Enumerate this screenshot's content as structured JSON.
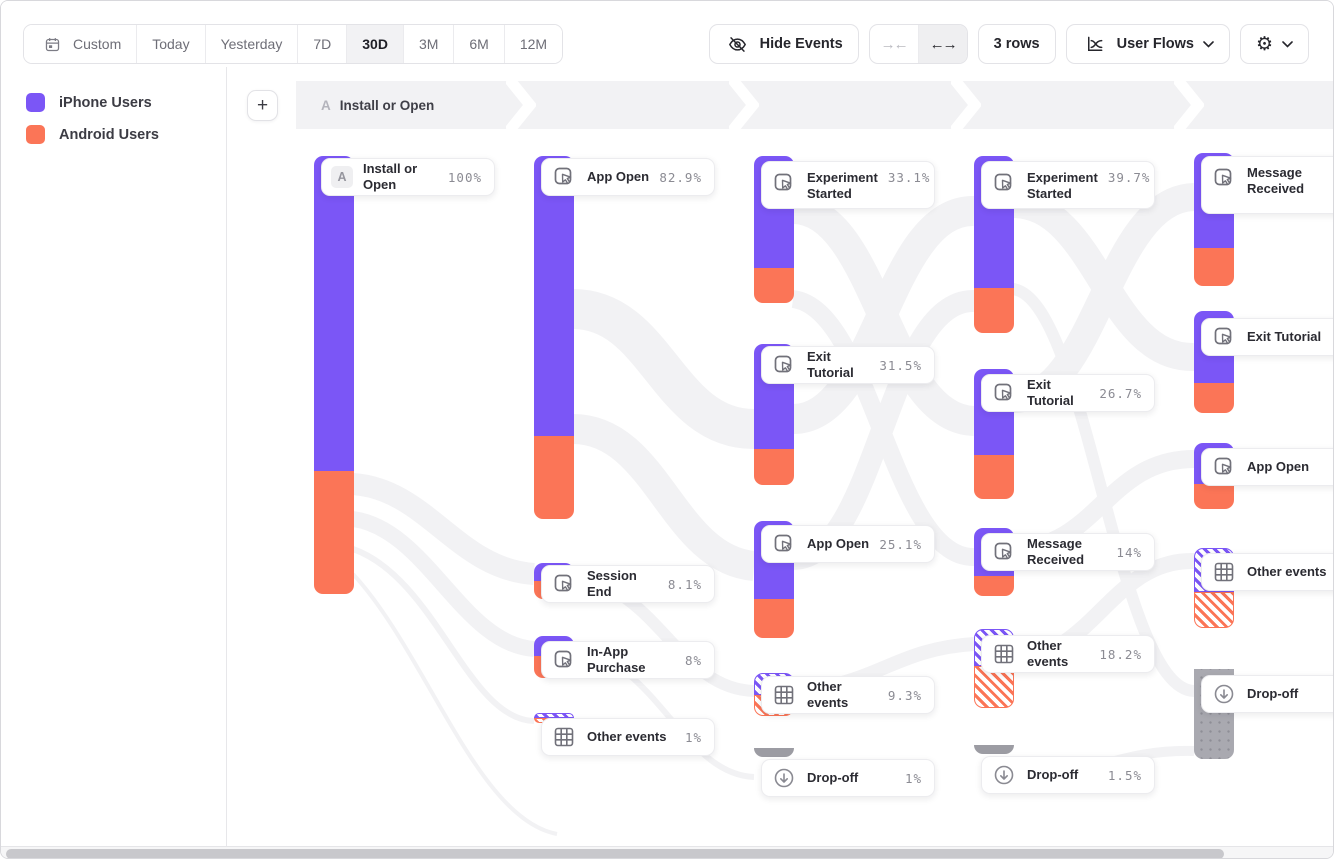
{
  "toolbar": {
    "date_ranges": [
      {
        "label": "Custom",
        "icon": "calendar-icon",
        "active": false
      },
      {
        "label": "Today",
        "active": false
      },
      {
        "label": "Yesterday",
        "active": false
      },
      {
        "label": "7D",
        "active": false
      },
      {
        "label": "30D",
        "active": true
      },
      {
        "label": "3M",
        "active": false
      },
      {
        "label": "6M",
        "active": false
      },
      {
        "label": "12M",
        "active": false
      }
    ],
    "hide_events_label": "Hide Events",
    "collapse_glyph": "→←",
    "expand_glyph": "←→",
    "rows_label": "3 rows",
    "view_label": "User Flows",
    "gear_glyph": "⚙",
    "plus_glyph": "+"
  },
  "legend": {
    "items": [
      {
        "label": "iPhone Users",
        "color": "#7b56f6"
      },
      {
        "label": "Android Users",
        "color": "#fb7557"
      }
    ]
  },
  "flow_header": {
    "badge": "A",
    "label": "Install or Open"
  },
  "chart_data": {
    "type": "sankey",
    "title": "",
    "legend": [
      "iPhone Users",
      "Android Users"
    ],
    "colors": {
      "iphone": "#7b56f6",
      "android": "#fb7557",
      "dropoff": "#9c9ca3"
    },
    "step_sequence": [
      "A Install or Open"
    ],
    "columns": [
      {
        "nodes": [
          {
            "label": "Install or Open",
            "value": "100%",
            "kind": "event",
            "badge": "A"
          }
        ]
      },
      {
        "nodes": [
          {
            "label": "App Open",
            "value": "82.9%",
            "kind": "event"
          },
          {
            "label": "Session End",
            "value": "8.1%",
            "kind": "event"
          },
          {
            "label": "In-App Purchase",
            "value": "8%",
            "kind": "event"
          },
          {
            "label": "Other events",
            "value": "1%",
            "kind": "other"
          }
        ]
      },
      {
        "nodes": [
          {
            "label": "Experiment Started",
            "value": "33.1%",
            "kind": "event"
          },
          {
            "label": "Exit Tutorial",
            "value": "31.5%",
            "kind": "event"
          },
          {
            "label": "App Open",
            "value": "25.1%",
            "kind": "event"
          },
          {
            "label": "Other events",
            "value": "9.3%",
            "kind": "other"
          },
          {
            "label": "Drop-off",
            "value": "1%",
            "kind": "dropoff"
          }
        ]
      },
      {
        "nodes": [
          {
            "label": "Experiment Started",
            "value": "39.7%",
            "kind": "event"
          },
          {
            "label": "Exit Tutorial",
            "value": "26.7%",
            "kind": "event"
          },
          {
            "label": "Message Received",
            "value": "14%",
            "kind": "event"
          },
          {
            "label": "Other events",
            "value": "18.2%",
            "kind": "other"
          },
          {
            "label": "Drop-off",
            "value": "1.5%",
            "kind": "dropoff"
          }
        ]
      },
      {
        "nodes": [
          {
            "label": "Message Received",
            "value": "",
            "kind": "event"
          },
          {
            "label": "Exit Tutorial",
            "value": "",
            "kind": "event"
          },
          {
            "label": "App Open",
            "value": "",
            "kind": "event"
          },
          {
            "label": "Other events",
            "value": "",
            "kind": "other"
          },
          {
            "label": "Drop-off",
            "value": "",
            "kind": "dropoff"
          }
        ]
      }
    ]
  }
}
